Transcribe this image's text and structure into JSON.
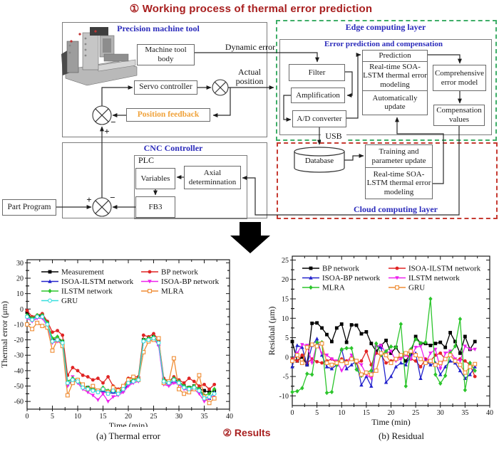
{
  "title": "① Working process of thermal error prediction",
  "results_label": "② Results",
  "flowchart": {
    "precision_machine_tool": "Precision machine tool",
    "machine_tool_body": "Machine tool body",
    "dynamic_error": "Dynamic error",
    "servo_controller": "Servo controller",
    "actual_position": "Actual position",
    "position_feedback": "Position feedback",
    "cnc_controller": "CNC Controller",
    "plc": "PLC",
    "variables": "Variables",
    "axial_determination": "Axial determinnation",
    "fb3": "FB3",
    "part_program": "Part Program",
    "edge_layer": "Edge computing layer",
    "error_prediction_compensation": "Error prediction and compensation",
    "filter": "Filter",
    "prediction": "Prediction",
    "realtime_modeling": "Real-time SOA-LSTM thermal error modeling",
    "auto_update": "Automatically update",
    "comprehensive_error_model": "Comprehensive error model",
    "compensation_values": "Compensation values",
    "amplification": "Amplification",
    "ad_converter": "A/D converter",
    "usb": "USB",
    "database": "Database",
    "training_update": "Training and parameter update",
    "cloud_realtime_modeling": "Real-time SOA-LSTM thermal error modeling",
    "cloud_layer": "Cloud computing layer",
    "plus": "+",
    "minus": "−"
  },
  "colors": {
    "heading": "#a81f1f",
    "layer_label_blue": "#2b2bbb",
    "edge_border_green": "#3fae68",
    "cloud_border_red": "#c63a31",
    "feedback_orange": "#f0a23a"
  },
  "chart_data": [
    {
      "type": "line",
      "caption": "(a) Thermal error",
      "xlabel": "Time (min)",
      "ylabel": "Thermal error (μm)",
      "xlim": [
        0,
        40
      ],
      "ylim": [
        -65,
        32
      ],
      "xticks": [
        0,
        5,
        10,
        15,
        20,
        25,
        30,
        35,
        40
      ],
      "yticks": [
        -60,
        -50,
        -40,
        -30,
        -20,
        -10,
        0,
        10,
        20,
        30
      ],
      "grid": false,
      "legend_position": "top-left, two columns",
      "x": [
        0,
        1,
        2,
        3,
        4,
        5,
        6,
        7,
        8,
        9,
        10,
        11,
        12,
        13,
        14,
        15,
        16,
        17,
        18,
        19,
        20,
        21,
        22,
        23,
        24,
        25,
        26,
        27,
        28,
        29,
        30,
        31,
        32,
        33,
        34,
        35,
        36,
        37
      ],
      "series": [
        {
          "name": "Measurement",
          "color": "#000000",
          "marker": "square",
          "values": [
            -2,
            -7,
            -5,
            -4,
            -9,
            -20,
            -19,
            -21,
            -48,
            -46,
            -47,
            -50,
            -51,
            -52,
            -53,
            -52,
            -54,
            -53,
            -54,
            -52,
            -48,
            -46,
            -45,
            -20,
            -19,
            -18,
            -21,
            -47,
            -48,
            -46,
            -47,
            -50,
            -51,
            -50,
            -52,
            -53,
            -54,
            -53
          ]
        },
        {
          "name": "BP network",
          "color": "#e02424",
          "marker": "circle",
          "values": [
            -1,
            -5,
            -4,
            -3,
            -8,
            -15,
            -14,
            -17,
            -43,
            -38,
            -40,
            -43,
            -44,
            -46,
            -45,
            -48,
            -44,
            -50,
            -52,
            -50,
            -45,
            -44,
            -44,
            -17,
            -18,
            -16,
            -20,
            -45,
            -47,
            -44,
            -46,
            -48,
            -45,
            -47,
            -50,
            -49,
            -52,
            -49
          ]
        },
        {
          "name": "ISOA-ILSTM network",
          "color": "#2323cc",
          "marker": "triangle",
          "values": [
            -5,
            -6,
            -5,
            -5,
            -10,
            -21,
            -20,
            -22,
            -49,
            -47,
            -46,
            -51,
            -52,
            -53,
            -54,
            -53,
            -55,
            -54,
            -55,
            -53,
            -49,
            -47,
            -46,
            -21,
            -20,
            -19,
            -23,
            -48,
            -49,
            -47,
            -48,
            -51,
            -52,
            -51,
            -53,
            -57,
            -58,
            -54
          ]
        },
        {
          "name": "ISOA-BP network",
          "color": "#ee22ee",
          "marker": "triangle-down",
          "values": [
            -6,
            -8,
            -6,
            -6,
            -11,
            -22,
            -21,
            -23,
            -50,
            -44,
            -48,
            -52,
            -54,
            -56,
            -59,
            -55,
            -60,
            -57,
            -56,
            -54,
            -50,
            -48,
            -47,
            -21,
            -20,
            -19,
            -24,
            -49,
            -50,
            -48,
            -49,
            -52,
            -53,
            -52,
            -55,
            -60,
            -58,
            -56
          ]
        },
        {
          "name": "ILSTM network",
          "color": "#2cc52c",
          "marker": "diamond",
          "values": [
            -4,
            -6,
            -4,
            -4,
            -9,
            -19,
            -18,
            -21,
            -47,
            -45,
            -46,
            -50,
            -51,
            -52,
            -53,
            -51,
            -53,
            -52,
            -54,
            -51,
            -47,
            -46,
            -45,
            -20,
            -19,
            -18,
            -22,
            -46,
            -47,
            -45,
            -47,
            -50,
            -51,
            -50,
            -52,
            -56,
            -55,
            -52
          ]
        },
        {
          "name": "MLRA",
          "color": "#ef8c33",
          "marker": "square-open",
          "values": [
            -10,
            -13,
            -9,
            -11,
            -12,
            -27,
            -20,
            -24,
            -56,
            -48,
            -46,
            -49,
            -52,
            -50,
            -53,
            -52,
            -54,
            -51,
            -53,
            -50,
            -46,
            -44,
            -46,
            -28,
            -21,
            -20,
            -19,
            -48,
            -47,
            -32,
            -52,
            -55,
            -54,
            -52,
            -43,
            -57,
            -61,
            -58
          ]
        },
        {
          "name": "GRU",
          "color": "#35dede",
          "marker": "circle-open",
          "values": [
            -5,
            -7,
            -5,
            -5,
            -10,
            -21,
            -20,
            -22,
            -48,
            -46,
            -47,
            -51,
            -52,
            -53,
            -54,
            -52,
            -55,
            -53,
            -55,
            -52,
            -48,
            -47,
            -46,
            -21,
            -20,
            -19,
            -22,
            -47,
            -48,
            -46,
            -48,
            -51,
            -52,
            -51,
            -53,
            -58,
            -57,
            -55
          ]
        }
      ]
    },
    {
      "type": "line",
      "caption": "(b) Residual",
      "xlabel": "Time (min)",
      "ylabel": "Residual (μm)",
      "xlim": [
        0,
        40
      ],
      "ylim": [
        -12.5,
        26
      ],
      "xticks": [
        0,
        5,
        10,
        15,
        20,
        25,
        30,
        35,
        40
      ],
      "yticks": [
        -10,
        -5,
        0,
        5,
        10,
        15,
        20,
        25
      ],
      "grid": false,
      "legend_position": "top-left, two columns",
      "x": [
        0,
        1,
        2,
        3,
        4,
        5,
        6,
        7,
        8,
        9,
        10,
        11,
        12,
        13,
        14,
        15,
        16,
        17,
        18,
        19,
        20,
        21,
        22,
        23,
        24,
        25,
        26,
        27,
        28,
        29,
        30,
        31,
        32,
        33,
        34,
        35,
        36,
        37
      ],
      "series": [
        {
          "name": "BP network",
          "color": "#000000",
          "marker": "square",
          "values": [
            4,
            -1,
            0,
            -2,
            8.7,
            8.8,
            7.5,
            5.8,
            4,
            7.5,
            8.5,
            3.8,
            8.3,
            8.2,
            6,
            6.5,
            3.5,
            1.5,
            3,
            4.3,
            1,
            2.5,
            0.5,
            -1,
            1,
            5.3,
            3.5,
            3.5,
            3,
            3.5,
            3.8,
            2.5,
            6.3,
            4,
            1,
            5.3,
            2,
            4
          ]
        },
        {
          "name": "ISOA-ILSTM network",
          "color": "#e02424",
          "marker": "circle",
          "values": [
            -0.5,
            -1,
            0.5,
            -1.5,
            -0.5,
            -1.2,
            -1.5,
            -1,
            -0.5,
            -1.5,
            -0.5,
            -1,
            -0.3,
            -1.5,
            -1,
            1.5,
            -2,
            1,
            0.5,
            -1.5,
            -1,
            -0.5,
            0,
            1,
            -0.5,
            -1,
            -2.5,
            -0.5,
            -1,
            0.5,
            1,
            -0.5,
            0.5,
            -1,
            -0.5,
            -1,
            -2,
            -5
          ]
        },
        {
          "name": "ISOA-BP network",
          "color": "#2323cc",
          "marker": "triangle",
          "values": [
            -2.5,
            3,
            2.5,
            -2,
            3,
            4.7,
            0.5,
            -2.5,
            -3,
            -2,
            2,
            -3,
            -2,
            -1,
            -7.2,
            -5,
            -7.5,
            3,
            2.5,
            -6.5,
            -5,
            -2.5,
            -1.5,
            -2,
            0.5,
            1,
            -5.5,
            -1,
            -2,
            -1.5,
            -4.5,
            -2.5,
            -1,
            -1.5,
            -3.5,
            -5.5,
            -4.5,
            -2.5
          ]
        },
        {
          "name": "ILSTM network",
          "color": "#ee22ee",
          "marker": "triangle-down",
          "values": [
            -1,
            1,
            3.2,
            3,
            -1.5,
            3.5,
            1,
            0.5,
            -0.5,
            -1,
            -3.5,
            -1.5,
            0.5,
            -1,
            -2,
            -4.5,
            -5.5,
            2.8,
            3,
            1,
            1.5,
            -1,
            -0.5,
            0.5,
            -0.5,
            2.5,
            2.8,
            -1.5,
            1,
            2,
            -3,
            1,
            1.5,
            -0.5,
            -1,
            2.8,
            2,
            2
          ]
        },
        {
          "name": "MLRA",
          "color": "#2cc52c",
          "marker": "diamond",
          "values": [
            -9,
            -8.8,
            -8,
            -4.3,
            -4.5,
            3.8,
            3.8,
            -9.2,
            -9,
            -2,
            2,
            2.3,
            2.3,
            -3.2,
            -4.8,
            -4,
            -3.5,
            3.5,
            0.5,
            1.5,
            2.7,
            2.5,
            8.5,
            -7.5,
            2,
            4.6,
            3.6,
            3.8,
            15,
            -4.5,
            -6.8,
            -4.8,
            1,
            2.8,
            9.8,
            -8.5,
            -1.5,
            -3.5
          ]
        },
        {
          "name": "GRU",
          "color": "#ef8c33",
          "marker": "square-open",
          "values": [
            -1,
            0.5,
            -1.5,
            2.5,
            3.2,
            2.8,
            3.5,
            -1.5,
            -2,
            -1.5,
            -1,
            -1.5,
            -0.5,
            -1,
            -4.5,
            -4,
            -4.5,
            -3.5,
            1,
            0.5,
            -1.5,
            -0.5,
            0.5,
            1,
            1.5,
            0.5,
            -0.5,
            -1.5,
            -1,
            -2,
            -1.5,
            -0.5,
            0.5,
            -1,
            -2,
            -4,
            -2.5,
            -1.8
          ]
        }
      ]
    }
  ]
}
